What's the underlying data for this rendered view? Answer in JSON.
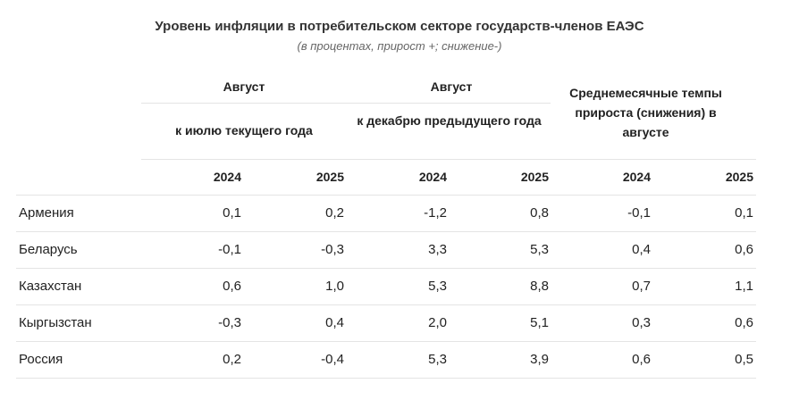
{
  "title": "Уровень инфляции в потребительском секторе государств-членов ЕАЭС",
  "subtitle": "(в процентах, прирост +; снижение-)",
  "groups": [
    {
      "top": "Август",
      "sub": "к июлю текущего года"
    },
    {
      "top": "Август",
      "sub": "к декабрю предыдущего года"
    },
    {
      "label": "Среднемесячные темпы прироста (снижения) в августе"
    }
  ],
  "years": [
    "2024",
    "2025",
    "2024",
    "2025",
    "2024",
    "2025"
  ],
  "rows": [
    {
      "country": "Армения",
      "values": [
        "0,1",
        "0,2",
        "-1,2",
        "0,8",
        "-0,1",
        "0,1"
      ]
    },
    {
      "country": "Беларусь",
      "values": [
        "-0,1",
        "-0,3",
        "3,3",
        "5,3",
        "0,4",
        "0,6"
      ]
    },
    {
      "country": "Казахстан",
      "values": [
        "0,6",
        "1,0",
        "5,3",
        "8,8",
        "0,7",
        "1,1"
      ]
    },
    {
      "country": "Кыргызстан",
      "values": [
        "-0,3",
        "0,4",
        "2,0",
        "5,1",
        "0,3",
        "0,6"
      ]
    },
    {
      "country": "Россия",
      "values": [
        "0,2",
        "-0,4",
        "5,3",
        "3,9",
        "0,6",
        "0,5"
      ]
    }
  ]
}
